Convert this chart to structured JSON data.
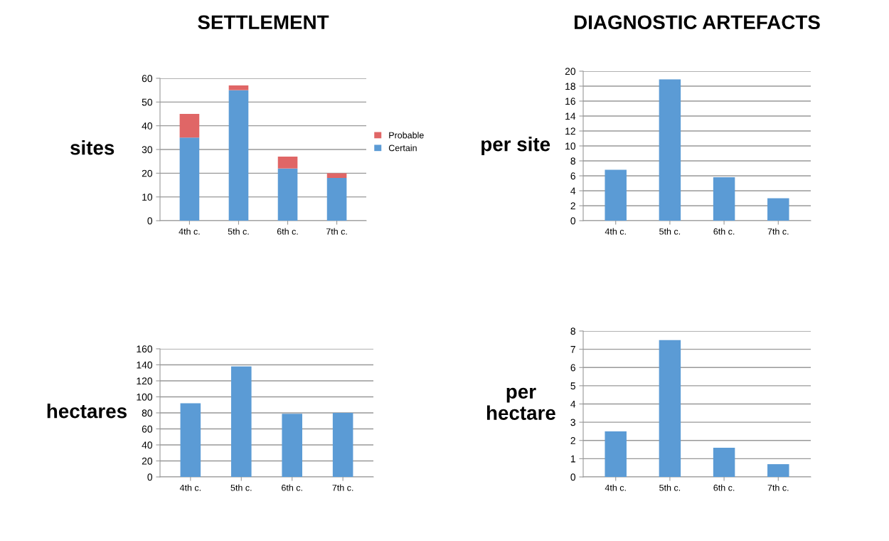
{
  "chart_data": [
    {
      "type": "bar",
      "title": "SETTLEMENT",
      "ylabel": "sites",
      "categories": [
        "4th c.",
        "5th c.",
        "6th c.",
        "7th c."
      ],
      "stacked": true,
      "series": [
        {
          "name": "Certain",
          "color": "#5b9bd5",
          "values": [
            35,
            55,
            22,
            18
          ]
        },
        {
          "name": "Probable",
          "color": "#e06666",
          "values": [
            10,
            2,
            5,
            2
          ]
        }
      ],
      "ylim": [
        0,
        60
      ],
      "yticks": [
        0,
        10,
        20,
        30,
        40,
        50,
        60
      ],
      "grid": "y",
      "legend": "right"
    },
    {
      "type": "bar",
      "title": "DIAGNOSTIC ARTEFACTS",
      "ylabel": "per site",
      "categories": [
        "4th c.",
        "5th c.",
        "6th c.",
        "7th c."
      ],
      "series": [
        {
          "color": "#5b9bd5",
          "values": [
            6.8,
            18.9,
            5.8,
            3.0
          ]
        }
      ],
      "ylim": [
        0,
        20
      ],
      "yticks": [
        0,
        2,
        4,
        6,
        8,
        10,
        12,
        14,
        16,
        18,
        20
      ],
      "grid": "y"
    },
    {
      "type": "bar",
      "ylabel": "hectares",
      "categories": [
        "4th c.",
        "5th c.",
        "6th c.",
        "7th c."
      ],
      "series": [
        {
          "color": "#5b9bd5",
          "values": [
            92,
            138,
            79,
            80
          ]
        }
      ],
      "ylim": [
        0,
        160
      ],
      "yticks": [
        0,
        20,
        40,
        60,
        80,
        100,
        120,
        140,
        160
      ],
      "grid": "y"
    },
    {
      "type": "bar",
      "ylabel": "per\nhectare",
      "categories": [
        "4th c.",
        "5th c.",
        "6th c.",
        "7th c."
      ],
      "series": [
        {
          "color": "#5b9bd5",
          "values": [
            2.5,
            7.5,
            1.6,
            0.7
          ]
        }
      ],
      "ylim": [
        0,
        8
      ],
      "yticks": [
        0,
        1,
        2,
        3,
        4,
        5,
        6,
        7,
        8
      ],
      "grid": "y"
    }
  ]
}
